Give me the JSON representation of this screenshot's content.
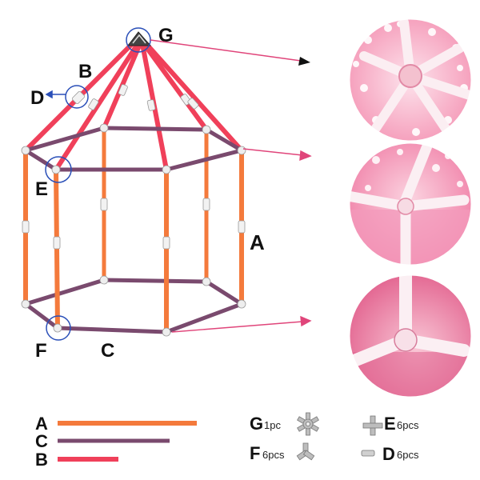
{
  "labels": {
    "G": "G",
    "B": "B",
    "D": "D",
    "E": "E",
    "A": "A",
    "F": "F",
    "C": "C"
  },
  "legend": {
    "A": "A",
    "C": "C",
    "B": "B"
  },
  "parts": {
    "G": {
      "letter": "G",
      "qty": "1pc",
      "icon": "star-hub-connector-icon"
    },
    "F": {
      "letter": "F",
      "qty": "6pcs",
      "icon": "three-way-connector-icon"
    },
    "E": {
      "letter": "E",
      "qty": "6pcs",
      "icon": "four-way-connector-icon"
    },
    "D": {
      "letter": "D",
      "qty": "6pcs",
      "icon": "straight-connector-icon"
    }
  },
  "colors": {
    "rod_A": "#f47a3c",
    "rod_B": "#f0405a",
    "rod_C": "#7a4a6e",
    "connector": "#e8e8e8",
    "circle": "#2a4fb8",
    "arrow": "#e0457a",
    "photo_bg": "#f7b9cc"
  }
}
